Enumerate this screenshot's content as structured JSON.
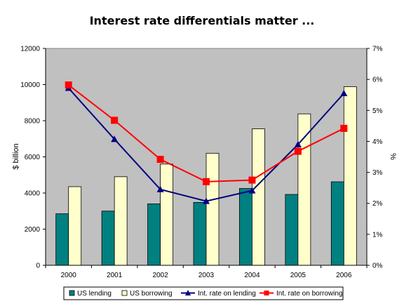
{
  "chart_data": {
    "type": "bar",
    "title": "Interest rate differentials matter ...",
    "categories": [
      "2000",
      "2001",
      "2002",
      "2003",
      "2004",
      "2005",
      "2006"
    ],
    "ylabel": "$ billion",
    "ylim": [
      0,
      12000
    ],
    "yticks": [
      "0",
      "2000",
      "4000",
      "6000",
      "8000",
      "10000",
      "12000"
    ],
    "y2label": "%",
    "y2lim": [
      0,
      7
    ],
    "y2ticks": [
      "0%",
      "1%",
      "2%",
      "3%",
      "4%",
      "5%",
      "6%",
      "7%"
    ],
    "grid": false,
    "legend_position": "bottom",
    "plot_background": "#c0c0c0",
    "series": [
      {
        "name": "US lending",
        "type": "bar",
        "axis": "left",
        "color": "#008080",
        "values": [
          2850,
          3000,
          3400,
          3480,
          4250,
          3920,
          4620
        ]
      },
      {
        "name": "US borrowing",
        "type": "bar",
        "axis": "left",
        "color": "#ffffcc",
        "values": [
          4350,
          4900,
          5600,
          6200,
          7550,
          8380,
          9880
        ]
      },
      {
        "name": "Int. rate on lending",
        "type": "line",
        "axis": "right",
        "color": "#000080",
        "marker": "triangle",
        "values": [
          5.72,
          4.07,
          2.45,
          2.07,
          2.41,
          3.9,
          5.55
        ]
      },
      {
        "name": "Int. rate on borrowing",
        "type": "line",
        "axis": "right",
        "color": "#ff0000",
        "marker": "square",
        "values": [
          5.82,
          4.68,
          3.42,
          2.7,
          2.75,
          3.68,
          4.42
        ]
      }
    ]
  }
}
